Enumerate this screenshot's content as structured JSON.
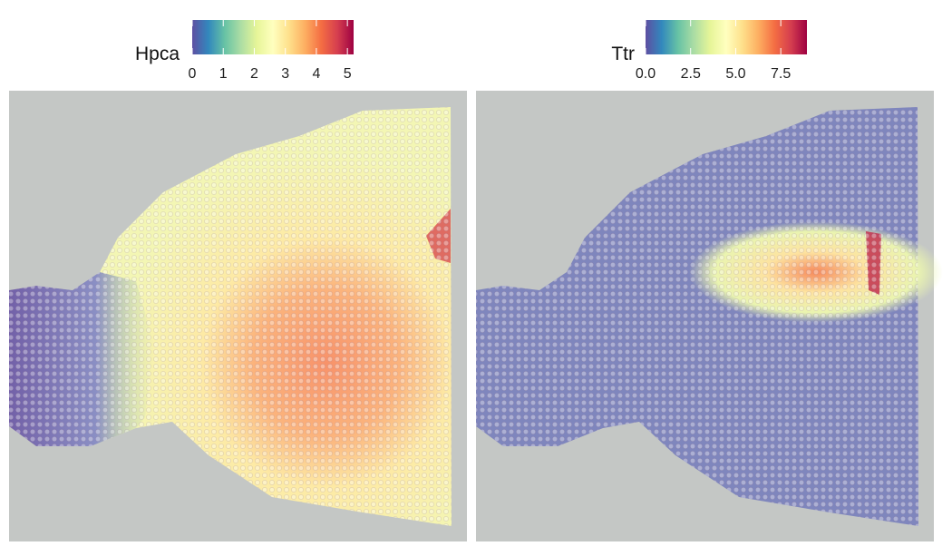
{
  "chart_data": [
    {
      "type": "spatial",
      "legend_title": "Hpca",
      "colormap": [
        "#5e4fa2",
        "#3288bd",
        "#66c2a5",
        "#abdda4",
        "#e6f598",
        "#ffffbf",
        "#fee08b",
        "#fdae61",
        "#f46d43",
        "#d53e4f",
        "#9e0142"
      ],
      "clim": [
        0,
        5.2
      ],
      "cticks": [
        0,
        1,
        2,
        3,
        4,
        5
      ]
    },
    {
      "type": "spatial",
      "legend_title": "Ttr",
      "colormap": [
        "#5e4fa2",
        "#3288bd",
        "#66c2a5",
        "#abdda4",
        "#e6f598",
        "#ffffbf",
        "#fee08b",
        "#fdae61",
        "#f46d43",
        "#d53e4f",
        "#9e0142"
      ],
      "clim": [
        0,
        8.95
      ],
      "cticks": [
        {
          "value": 0,
          "label": "0.0"
        },
        {
          "value": 2.5,
          "label": "2.5"
        },
        {
          "value": 5,
          "label": "5.0"
        },
        {
          "value": 7.5,
          "label": "7.5"
        }
      ]
    }
  ]
}
